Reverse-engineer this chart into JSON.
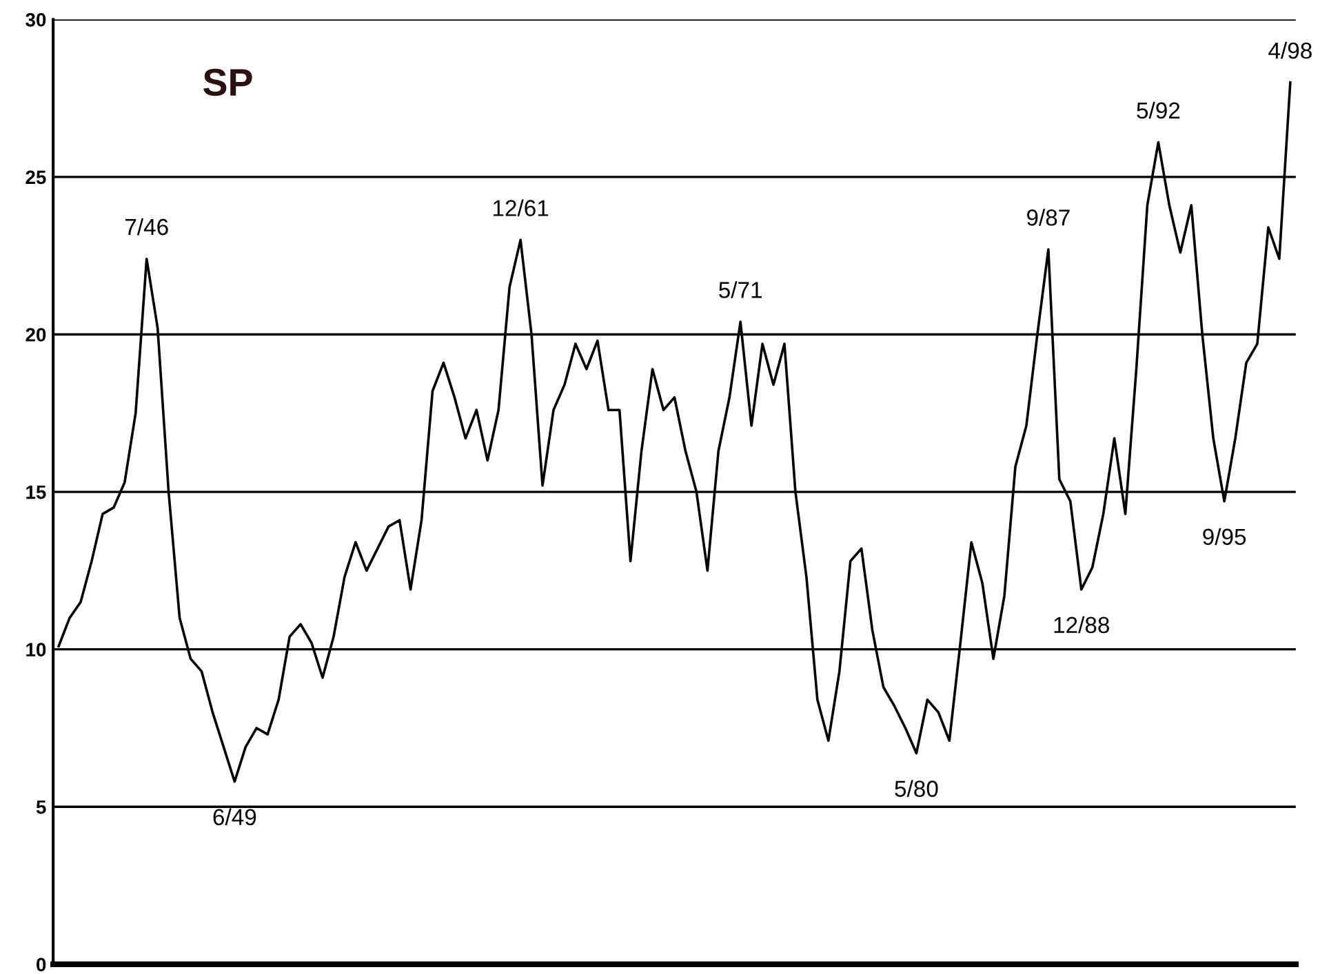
{
  "chart_data": {
    "type": "line",
    "title": "SP",
    "categories": [
      null,
      null,
      null,
      null,
      null,
      null,
      null,
      null,
      null,
      null,
      null,
      null,
      null,
      null,
      null,
      null,
      null,
      null,
      null,
      null,
      null,
      null,
      null,
      null,
      null,
      null,
      null,
      null,
      null,
      null,
      null,
      null,
      null,
      null,
      null,
      null,
      null,
      null,
      null,
      null,
      null,
      null,
      null,
      null,
      null,
      null,
      null,
      null,
      null,
      null,
      null,
      null,
      null,
      null,
      null,
      null,
      null,
      null,
      null,
      null,
      null,
      null,
      null,
      null,
      null,
      null,
      null,
      null,
      null,
      null,
      null,
      null,
      null,
      null,
      null,
      null,
      null,
      null,
      null,
      null,
      null,
      null,
      null,
      null,
      null,
      null,
      null,
      null,
      null,
      null,
      null,
      null,
      null,
      null,
      null,
      null,
      null,
      null,
      null,
      null,
      null,
      null,
      null,
      null,
      null,
      null,
      null,
      null,
      null,
      null,
      null,
      null,
      null
    ],
    "series": [
      {
        "color": "#000000",
        "values": [
          10.1,
          11.0,
          11.5,
          12.8,
          14.3,
          14.5,
          15.3,
          17.5,
          22.4,
          20.2,
          15.0,
          11.0,
          9.7,
          9.3,
          8.0,
          6.9,
          5.8,
          6.9,
          7.5,
          7.3,
          8.4,
          10.4,
          10.8,
          10.2,
          9.1,
          10.4,
          12.3,
          13.4,
          12.5,
          13.2,
          13.9,
          14.1,
          11.9,
          14.1,
          18.2,
          19.1,
          18.0,
          16.7,
          17.6,
          16.0,
          17.6,
          21.5,
          23.0,
          20.0,
          15.2,
          17.6,
          18.4,
          19.7,
          18.9,
          19.8,
          17.6,
          17.6,
          12.8,
          16.3,
          18.9,
          17.6,
          18.0,
          16.3,
          15.0,
          12.5,
          16.3,
          18.0,
          20.4,
          17.1,
          19.7,
          18.4,
          19.7,
          15.0,
          12.3,
          8.4,
          7.1,
          9.3,
          12.8,
          13.2,
          10.6,
          8.8,
          8.2,
          7.5,
          6.7,
          8.4,
          8.0,
          7.1,
          10.2,
          13.4,
          12.1,
          9.7,
          11.7,
          15.8,
          17.1,
          20.0,
          22.7,
          15.4,
          14.7,
          11.9,
          12.6,
          14.3,
          16.7,
          14.3,
          18.9,
          24.1,
          26.1,
          24.1,
          22.6,
          24.1,
          20.0,
          16.7,
          14.7,
          16.7,
          19.1,
          19.7,
          23.4,
          22.4,
          28.0
        ]
      }
    ],
    "ylim": [
      0,
      30
    ],
    "yticks": [
      0,
      5,
      10,
      15,
      20,
      25,
      30
    ],
    "tick_labels": "y",
    "grid": "y",
    "annotations": [
      {
        "text": "7/46",
        "y": 22.4
      },
      {
        "text": "6/49",
        "y": 5.8
      },
      {
        "text": "12/61",
        "y": 23.0
      },
      {
        "text": "5/71",
        "y": 20.4
      },
      {
        "text": "5/80",
        "y": 6.7
      },
      {
        "text": "9/87",
        "y": 22.7
      },
      {
        "text": "12/88",
        "y": 11.9
      },
      {
        "text": "5/92",
        "y": 26.1
      },
      {
        "text": "9/95",
        "y": 14.7
      },
      {
        "text": "4/98",
        "y": 28.0
      }
    ]
  }
}
